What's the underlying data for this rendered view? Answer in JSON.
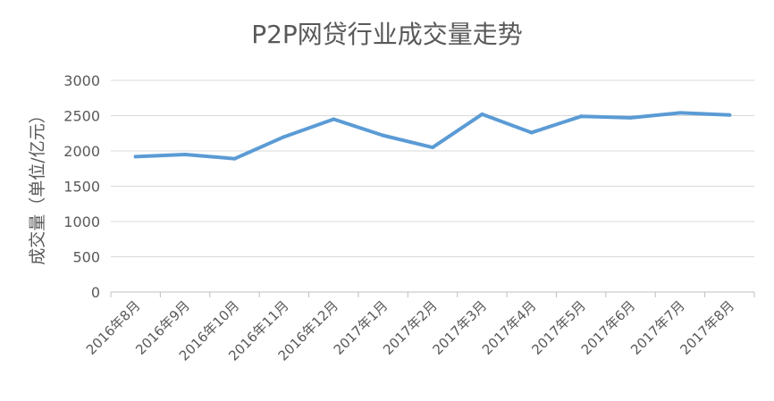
{
  "chart_data": {
    "type": "line",
    "title": "P2P网贷行业成交量走势",
    "ylabel": "成交量（单位/亿元）",
    "xlabel": "",
    "categories": [
      "2016年8月",
      "2016年9月",
      "2016年10月",
      "2016年11月",
      "2016年12月",
      "2017年1月",
      "2017年2月",
      "2017年3月",
      "2017年4月",
      "2017年5月",
      "2017年6月",
      "2017年7月",
      "2017年8月"
    ],
    "series": [
      {
        "values": [
          1920,
          1950,
          1890,
          2200,
          2450,
          2220,
          2050,
          2520,
          2260,
          2490,
          2470,
          2540,
          2510
        ]
      }
    ],
    "ylim": [
      0,
      3000
    ],
    "yticks": [
      "0",
      "500",
      "1000",
      "1500",
      "2000",
      "2500",
      "3000"
    ],
    "grid": true,
    "legend": "none",
    "line_color": "#5b9bd5"
  }
}
